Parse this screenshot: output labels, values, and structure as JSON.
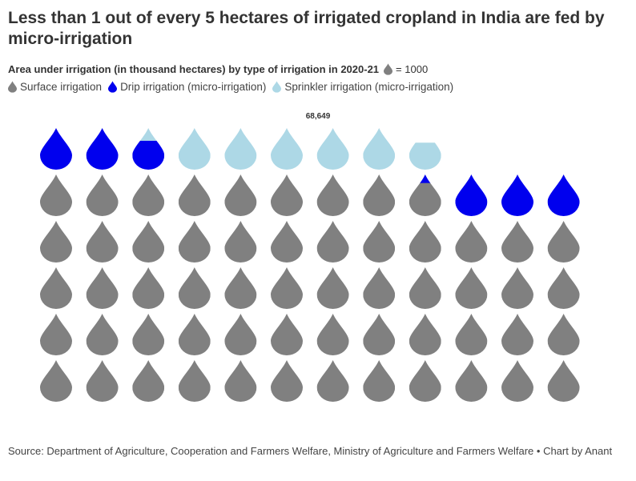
{
  "title": "Less than 1 out of every 5 hectares of irrigated cropland in India are fed by micro-irrigation",
  "subtitle": "Area under irrigation (in thousand hectares) by type of irrigation in 2020-21",
  "unit_label": "= 1000",
  "source": "Source: Department of Agriculture, Cooperation and Farmers Welfare, Ministry of Agriculture and Farmers Welfare • Chart by Anant",
  "colors": {
    "surface": "#808080",
    "drip": "#0000ee",
    "sprinkler": "#add8e6"
  },
  "chart_data": {
    "type": "pictogram",
    "unit_value": 1000,
    "total_label": "68,649",
    "columns": 12,
    "series": [
      {
        "name": "Surface irrigation",
        "value": 56800,
        "color": "#808080"
      },
      {
        "name": "Drip irrigation (micro-irrigation)",
        "value": 5900,
        "color": "#0000ee"
      },
      {
        "name": "Sprinkler irrigation (micro-irrigation)",
        "value": 5949,
        "color": "#add8e6"
      }
    ]
  }
}
